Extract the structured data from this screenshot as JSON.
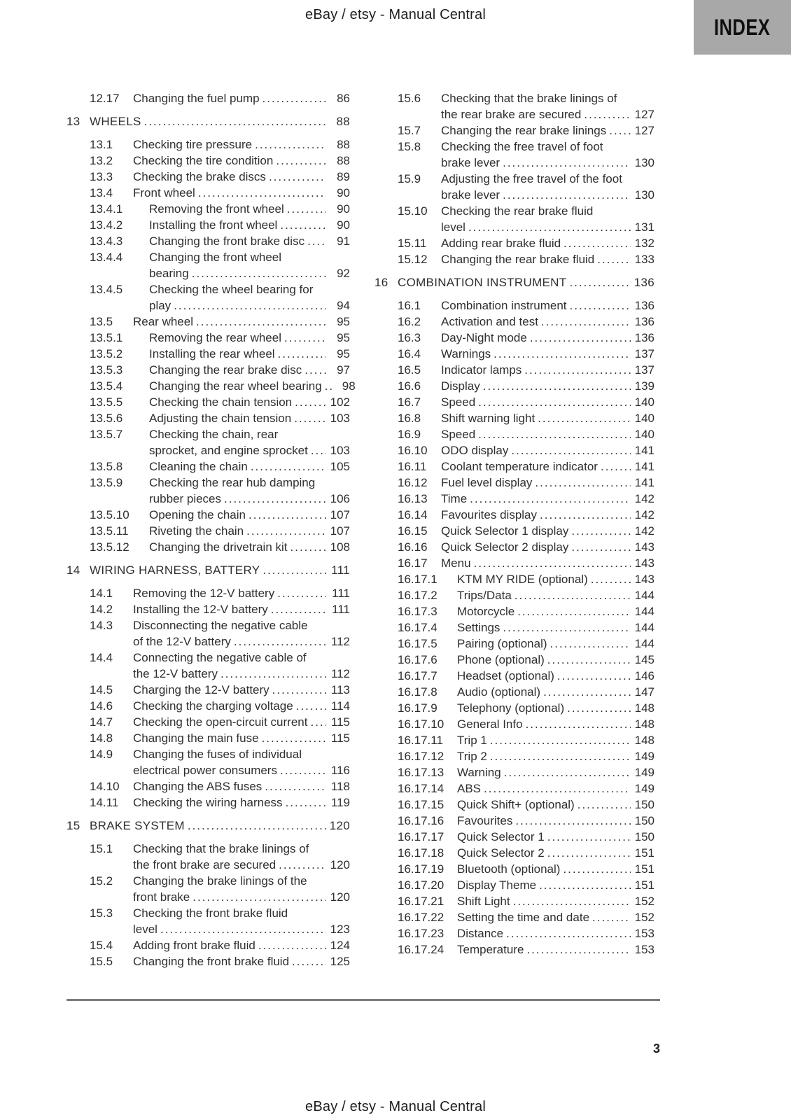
{
  "page": {
    "header_title": "eBay / etsy - Manual Central",
    "footer_title": "eBay / etsy - Manual Central",
    "index_tab_label": "INDEX",
    "page_number": "3"
  },
  "colors": {
    "index_tab_bg": "#a8a8a8",
    "text": "#2f2f2f",
    "footer_rule": "#7d7d7d"
  },
  "toc": {
    "columns": [
      {
        "name": "left",
        "entries": [
          {
            "num": "12.17",
            "lines": [
              "Changing the fuel pump"
            ],
            "page": "86",
            "level": 1
          },
          {
            "num": "13",
            "lines": [
              "WHEELS"
            ],
            "page": "88",
            "level": 0
          },
          {
            "num": "13.1",
            "lines": [
              "Checking tire pressure"
            ],
            "page": "88",
            "level": 1
          },
          {
            "num": "13.2",
            "lines": [
              "Checking the tire condition"
            ],
            "page": "88",
            "level": 1
          },
          {
            "num": "13.3",
            "lines": [
              "Checking the brake discs"
            ],
            "page": "89",
            "level": 1
          },
          {
            "num": "13.4",
            "lines": [
              "Front wheel"
            ],
            "page": "90",
            "level": 1
          },
          {
            "num": "13.4.1",
            "lines": [
              "Removing the front wheel"
            ],
            "page": "90",
            "level": 2
          },
          {
            "num": "13.4.2",
            "lines": [
              "Installing the front wheel"
            ],
            "page": "90",
            "level": 2
          },
          {
            "num": "13.4.3",
            "lines": [
              "Changing the front brake disc"
            ],
            "page": "91",
            "level": 2
          },
          {
            "num": "13.4.4",
            "lines": [
              "Changing the front wheel",
              "bearing"
            ],
            "page": "92",
            "level": 2
          },
          {
            "num": "13.4.5",
            "lines": [
              "Checking the wheel bearing for",
              "play"
            ],
            "page": "94",
            "level": 2
          },
          {
            "num": "13.5",
            "lines": [
              "Rear wheel"
            ],
            "page": "95",
            "level": 1
          },
          {
            "num": "13.5.1",
            "lines": [
              "Removing the rear wheel"
            ],
            "page": "95",
            "level": 2
          },
          {
            "num": "13.5.2",
            "lines": [
              "Installing the rear wheel"
            ],
            "page": "95",
            "level": 2
          },
          {
            "num": "13.5.3",
            "lines": [
              "Changing the rear brake disc"
            ],
            "page": "97",
            "level": 2
          },
          {
            "num": "13.5.4",
            "lines": [
              "Changing the rear wheel bearing"
            ],
            "page": "98",
            "level": 2
          },
          {
            "num": "13.5.5",
            "lines": [
              "Checking the chain tension"
            ],
            "page": "102",
            "level": 2
          },
          {
            "num": "13.5.6",
            "lines": [
              "Adjusting the chain tension"
            ],
            "page": "103",
            "level": 2
          },
          {
            "num": "13.5.7",
            "lines": [
              "Checking the chain, rear",
              "sprocket, and engine sprocket"
            ],
            "page": "103",
            "level": 2
          },
          {
            "num": "13.5.8",
            "lines": [
              "Cleaning the chain"
            ],
            "page": "105",
            "level": 2
          },
          {
            "num": "13.5.9",
            "lines": [
              "Checking the rear hub damping",
              "rubber pieces"
            ],
            "page": "106",
            "level": 2
          },
          {
            "num": "13.5.10",
            "lines": [
              "Opening the chain"
            ],
            "page": "107",
            "level": 2
          },
          {
            "num": "13.5.11",
            "lines": [
              "Riveting the chain"
            ],
            "page": "107",
            "level": 2
          },
          {
            "num": "13.5.12",
            "lines": [
              "Changing the drivetrain kit"
            ],
            "page": "108",
            "level": 2
          },
          {
            "num": "14",
            "lines": [
              "WIRING HARNESS, BATTERY"
            ],
            "page": "111",
            "level": 0
          },
          {
            "num": "14.1",
            "lines": [
              "Removing the 12-V battery"
            ],
            "page": "111",
            "level": 1
          },
          {
            "num": "14.2",
            "lines": [
              "Installing the 12-V battery"
            ],
            "page": "111",
            "level": 1
          },
          {
            "num": "14.3",
            "lines": [
              "Disconnecting the negative cable",
              "of the 12-V battery"
            ],
            "page": "112",
            "level": 1
          },
          {
            "num": "14.4",
            "lines": [
              "Connecting the negative cable of",
              "the 12-V battery"
            ],
            "page": "112",
            "level": 1
          },
          {
            "num": "14.5",
            "lines": [
              "Charging the 12-V battery"
            ],
            "page": "113",
            "level": 1
          },
          {
            "num": "14.6",
            "lines": [
              "Checking the charging voltage"
            ],
            "page": "114",
            "level": 1
          },
          {
            "num": "14.7",
            "lines": [
              "Checking the open-circuit current"
            ],
            "page": "115",
            "level": 1
          },
          {
            "num": "14.8",
            "lines": [
              "Changing the main fuse"
            ],
            "page": "115",
            "level": 1
          },
          {
            "num": "14.9",
            "lines": [
              "Changing the fuses of individual",
              "electrical power consumers"
            ],
            "page": "116",
            "level": 1
          },
          {
            "num": "14.10",
            "lines": [
              "Changing the ABS fuses"
            ],
            "page": "118",
            "level": 1
          },
          {
            "num": "14.11",
            "lines": [
              "Checking the wiring harness"
            ],
            "page": "119",
            "level": 1
          },
          {
            "num": "15",
            "lines": [
              "BRAKE SYSTEM"
            ],
            "page": "120",
            "level": 0
          },
          {
            "num": "15.1",
            "lines": [
              "Checking that the brake linings of",
              "the front brake are secured"
            ],
            "page": "120",
            "level": 1
          },
          {
            "num": "15.2",
            "lines": [
              "Changing the brake linings of the",
              "front brake"
            ],
            "page": "120",
            "level": 1
          },
          {
            "num": "15.3",
            "lines": [
              "Checking the front brake fluid",
              "level"
            ],
            "page": "123",
            "level": 1
          },
          {
            "num": "15.4",
            "lines": [
              "Adding front brake fluid"
            ],
            "page": "124",
            "level": 1
          },
          {
            "num": "15.5",
            "lines": [
              "Changing the front brake fluid"
            ],
            "page": "125",
            "level": 1
          }
        ]
      },
      {
        "name": "right",
        "entries": [
          {
            "num": "15.6",
            "lines": [
              "Checking that the brake linings of",
              "the rear brake are secured"
            ],
            "page": "127",
            "level": 1
          },
          {
            "num": "15.7",
            "lines": [
              "Changing the rear brake linings"
            ],
            "page": "127",
            "level": 1
          },
          {
            "num": "15.8",
            "lines": [
              "Checking the free travel of foot",
              "brake lever"
            ],
            "page": "130",
            "level": 1
          },
          {
            "num": "15.9",
            "lines": [
              "Adjusting the free travel of the foot",
              "brake lever"
            ],
            "page": "130",
            "level": 1
          },
          {
            "num": "15.10",
            "lines": [
              "Checking the rear brake fluid",
              "level"
            ],
            "page": "131",
            "level": 1
          },
          {
            "num": "15.11",
            "lines": [
              "Adding rear brake fluid"
            ],
            "page": "132",
            "level": 1
          },
          {
            "num": "15.12",
            "lines": [
              "Changing the rear brake fluid"
            ],
            "page": "133",
            "level": 1
          },
          {
            "num": "16",
            "lines": [
              "COMBINATION INSTRUMENT"
            ],
            "page": "136",
            "level": 0
          },
          {
            "num": "16.1",
            "lines": [
              "Combination instrument"
            ],
            "page": "136",
            "level": 1
          },
          {
            "num": "16.2",
            "lines": [
              "Activation and test"
            ],
            "page": "136",
            "level": 1
          },
          {
            "num": "16.3",
            "lines": [
              "Day-Night mode"
            ],
            "page": "136",
            "level": 1
          },
          {
            "num": "16.4",
            "lines": [
              "Warnings"
            ],
            "page": "137",
            "level": 1
          },
          {
            "num": "16.5",
            "lines": [
              "Indicator lamps"
            ],
            "page": "137",
            "level": 1
          },
          {
            "num": "16.6",
            "lines": [
              "Display"
            ],
            "page": "139",
            "level": 1
          },
          {
            "num": "16.7",
            "lines": [
              "Speed"
            ],
            "page": "140",
            "level": 1
          },
          {
            "num": "16.8",
            "lines": [
              "Shift warning light"
            ],
            "page": "140",
            "level": 1
          },
          {
            "num": "16.9",
            "lines": [
              "Speed"
            ],
            "page": "140",
            "level": 1
          },
          {
            "num": "16.10",
            "lines": [
              "ODO display"
            ],
            "page": "141",
            "level": 1
          },
          {
            "num": "16.11",
            "lines": [
              "Coolant temperature indicator"
            ],
            "page": "141",
            "level": 1
          },
          {
            "num": "16.12",
            "lines": [
              "Fuel level display"
            ],
            "page": "141",
            "level": 1
          },
          {
            "num": "16.13",
            "lines": [
              "Time"
            ],
            "page": "142",
            "level": 1
          },
          {
            "num": "16.14",
            "lines": [
              "Favourites display"
            ],
            "page": "142",
            "level": 1
          },
          {
            "num": "16.15",
            "lines": [
              "Quick Selector 1 display"
            ],
            "page": "142",
            "level": 1
          },
          {
            "num": "16.16",
            "lines": [
              "Quick Selector 2 display"
            ],
            "page": "143",
            "level": 1
          },
          {
            "num": "16.17",
            "lines": [
              "Menu"
            ],
            "page": "143",
            "level": 1
          },
          {
            "num": "16.17.1",
            "lines": [
              "KTM MY RIDE (optional)"
            ],
            "page": "143",
            "level": 2
          },
          {
            "num": "16.17.2",
            "lines": [
              "Trips/Data"
            ],
            "page": "144",
            "level": 2
          },
          {
            "num": "16.17.3",
            "lines": [
              "Motorcycle"
            ],
            "page": "144",
            "level": 2
          },
          {
            "num": "16.17.4",
            "lines": [
              "Settings"
            ],
            "page": "144",
            "level": 2
          },
          {
            "num": "16.17.5",
            "lines": [
              "Pairing (optional)"
            ],
            "page": "144",
            "level": 2
          },
          {
            "num": "16.17.6",
            "lines": [
              "Phone (optional)"
            ],
            "page": "145",
            "level": 2
          },
          {
            "num": "16.17.7",
            "lines": [
              "Headset (optional)"
            ],
            "page": "146",
            "level": 2
          },
          {
            "num": "16.17.8",
            "lines": [
              "Audio (optional)"
            ],
            "page": "147",
            "level": 2
          },
          {
            "num": "16.17.9",
            "lines": [
              "Telephony (optional)"
            ],
            "page": "148",
            "level": 2
          },
          {
            "num": "16.17.10",
            "lines": [
              "General Info"
            ],
            "page": "148",
            "level": 2
          },
          {
            "num": "16.17.11",
            "lines": [
              "Trip 1"
            ],
            "page": "148",
            "level": 2
          },
          {
            "num": "16.17.12",
            "lines": [
              "Trip 2"
            ],
            "page": "149",
            "level": 2
          },
          {
            "num": "16.17.13",
            "lines": [
              "Warning"
            ],
            "page": "149",
            "level": 2
          },
          {
            "num": "16.17.14",
            "lines": [
              "ABS"
            ],
            "page": "149",
            "level": 2
          },
          {
            "num": "16.17.15",
            "lines": [
              "Quick Shift+ (optional)"
            ],
            "page": "150",
            "level": 2
          },
          {
            "num": "16.17.16",
            "lines": [
              "Favourites"
            ],
            "page": "150",
            "level": 2
          },
          {
            "num": "16.17.17",
            "lines": [
              "Quick Selector 1"
            ],
            "page": "150",
            "level": 2
          },
          {
            "num": "16.17.18",
            "lines": [
              "Quick Selector 2"
            ],
            "page": "151",
            "level": 2
          },
          {
            "num": "16.17.19",
            "lines": [
              "Bluetooth (optional)"
            ],
            "page": "151",
            "level": 2
          },
          {
            "num": "16.17.20",
            "lines": [
              "Display Theme"
            ],
            "page": "151",
            "level": 2
          },
          {
            "num": "16.17.21",
            "lines": [
              "Shift Light"
            ],
            "page": "152",
            "level": 2
          },
          {
            "num": "16.17.22",
            "lines": [
              "Setting the time and date"
            ],
            "page": "152",
            "level": 2
          },
          {
            "num": "16.17.23",
            "lines": [
              "Distance"
            ],
            "page": "153",
            "level": 2
          },
          {
            "num": "16.17.24",
            "lines": [
              "Temperature"
            ],
            "page": "153",
            "level": 2
          }
        ]
      }
    ]
  }
}
